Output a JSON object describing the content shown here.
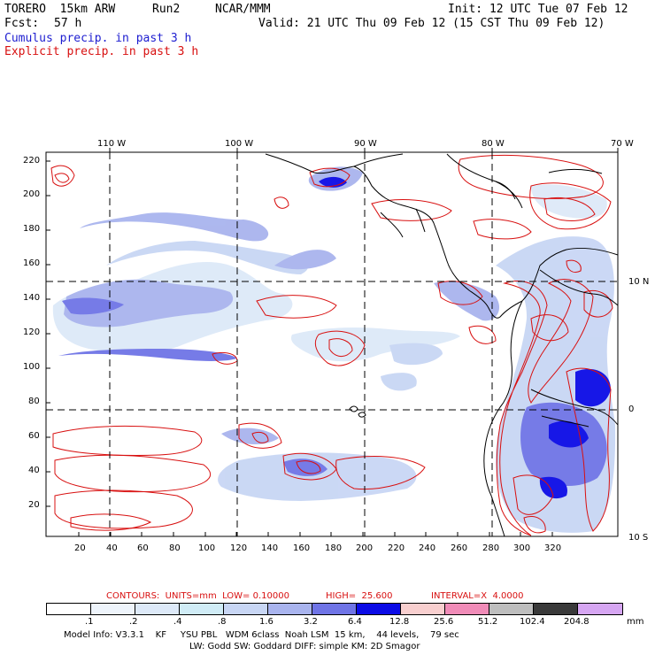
{
  "header": {
    "model": "TORERO  15km ARW",
    "run": "Run2",
    "org": "NCAR/MMM",
    "init": "Init: 12 UTC Tue 07 Feb 12",
    "fcst_label": "Fcst:",
    "fcst_value": "57 h",
    "valid": "Valid: 21 UTC Thu 09 Feb 12 (15 CST Thu 09 Feb 12)",
    "cumulus": "Cumulus precip. in past 3 h",
    "explicit": "Explicit precip. in past 3 h"
  },
  "axes": {
    "top_lon": [
      "110 W",
      "100 W",
      "90 W",
      "80 W",
      "70 W"
    ],
    "right_lat": [
      "10 N",
      "0",
      "10 S"
    ],
    "y_ticks": [
      "220",
      "200",
      "180",
      "160",
      "140",
      "120",
      "100",
      "80",
      "60",
      "40",
      "20"
    ],
    "x_ticks": [
      "20",
      "40",
      "60",
      "80",
      "100",
      "120",
      "140",
      "160",
      "180",
      "200",
      "220",
      "240",
      "260",
      "280",
      "300",
      "320"
    ]
  },
  "contours_line": {
    "contours": "CONTOURS:  UNITS=mm  LOW= 0.10000",
    "high": "HIGH=  25.600",
    "interval": "INTERVAL=X  4.0000"
  },
  "legend": {
    "labels": [
      ".1",
      ".2",
      ".4",
      ".8",
      "1.6",
      "3.2",
      "6.4",
      "12.8",
      "25.6",
      "51.2",
      "102.4",
      "204.8"
    ],
    "unit": "mm",
    "colors": [
      "#ffffff",
      "#eef4fb",
      "#dde9f8",
      "#d0ecf6",
      "#c8d6f4",
      "#a9b4ee",
      "#6f74e6",
      "#0b0be6",
      "#f8cfcf",
      "#f08cb8",
      "#bebebe",
      "#3a3a3a",
      "#d6a6f2"
    ]
  },
  "footer": {
    "line1": "Model Info: V3.3.1    KF     YSU PBL   WDM 6class  Noah LSM  15 km,    44 levels,    79 sec",
    "line2": "LW: Godd SW: Goddard DIFF: simple KM: 2D Smagor"
  }
}
